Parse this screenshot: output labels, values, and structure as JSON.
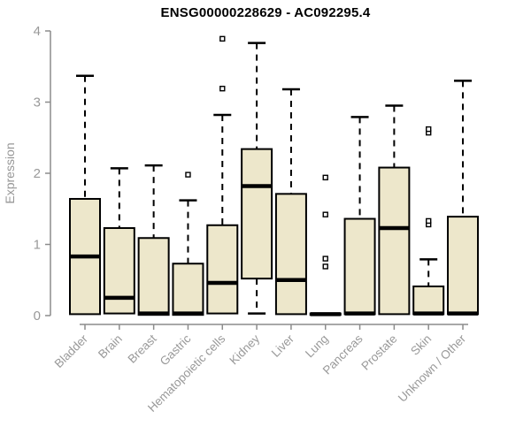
{
  "chart": {
    "title": "ENSG00000228629 - AC092295.4",
    "ylabel": "Expression"
  },
  "chart_data": {
    "type": "boxplot",
    "title": "ENSG00000228629 - AC092295.4",
    "xlabel": "",
    "ylabel": "Expression",
    "ylim": [
      0,
      4
    ],
    "y_ticks": [
      0,
      1,
      2,
      3,
      4
    ],
    "grid": false,
    "legend": false,
    "categories": [
      "Bladder",
      "Brain",
      "Breast",
      "Gastric",
      "Hematopoietic cells",
      "Kidney",
      "Liver",
      "Lung",
      "Pancreas",
      "Prostate",
      "Skin",
      "Unknown / Other"
    ],
    "series": [
      {
        "name": "Bladder",
        "low": 0.02,
        "q1": 0.02,
        "median": 0.83,
        "q3": 1.64,
        "high": 3.37,
        "outliers": []
      },
      {
        "name": "Brain",
        "low": 0.03,
        "q1": 0.03,
        "median": 0.25,
        "q3": 1.23,
        "high": 2.07,
        "outliers": []
      },
      {
        "name": "Breast",
        "low": 0.01,
        "q1": 0.01,
        "median": 0.03,
        "q3": 1.09,
        "high": 2.11,
        "outliers": []
      },
      {
        "name": "Gastric",
        "low": 0.01,
        "q1": 0.01,
        "median": 0.03,
        "q3": 0.73,
        "high": 1.62,
        "outliers": [
          1.98
        ]
      },
      {
        "name": "Hematopoietic cells",
        "low": 0.03,
        "q1": 0.03,
        "median": 0.46,
        "q3": 1.27,
        "high": 2.82,
        "outliers": [
          3.19,
          3.89
        ]
      },
      {
        "name": "Kidney",
        "low": 0.03,
        "q1": 0.52,
        "median": 1.82,
        "q3": 2.34,
        "high": 3.83,
        "outliers": []
      },
      {
        "name": "Liver",
        "low": 0.02,
        "q1": 0.02,
        "median": 0.5,
        "q3": 1.71,
        "high": 3.18,
        "outliers": []
      },
      {
        "name": "Lung",
        "low": 0.01,
        "q1": 0.01,
        "median": 0.02,
        "q3": 0.03,
        "high": 0.03,
        "outliers": [
          0.69,
          0.8,
          1.42,
          1.94
        ]
      },
      {
        "name": "Pancreas",
        "low": 0.02,
        "q1": 0.02,
        "median": 0.03,
        "q3": 1.36,
        "high": 2.79,
        "outliers": []
      },
      {
        "name": "Prostate",
        "low": 0.02,
        "q1": 0.02,
        "median": 1.23,
        "q3": 2.08,
        "high": 2.95,
        "outliers": []
      },
      {
        "name": "Skin",
        "low": 0.02,
        "q1": 0.02,
        "median": 0.03,
        "q3": 0.41,
        "high": 0.79,
        "outliers": [
          1.28,
          1.33,
          2.57,
          2.62
        ]
      },
      {
        "name": "Unknown / Other",
        "low": 0.02,
        "q1": 0.02,
        "median": 0.03,
        "q3": 1.39,
        "high": 3.3,
        "outliers": []
      }
    ],
    "colors": {
      "box_fill": "#EDE7CB",
      "box_stroke": "#000000",
      "median": "#000000",
      "whisker": "#000000",
      "outlier_stroke": "#000000",
      "outlier_fill": "#ffffff",
      "axis_line": "#8C8C8C",
      "axis_text": "#999999",
      "title": "#000000",
      "background": "#FFFFFF"
    }
  }
}
